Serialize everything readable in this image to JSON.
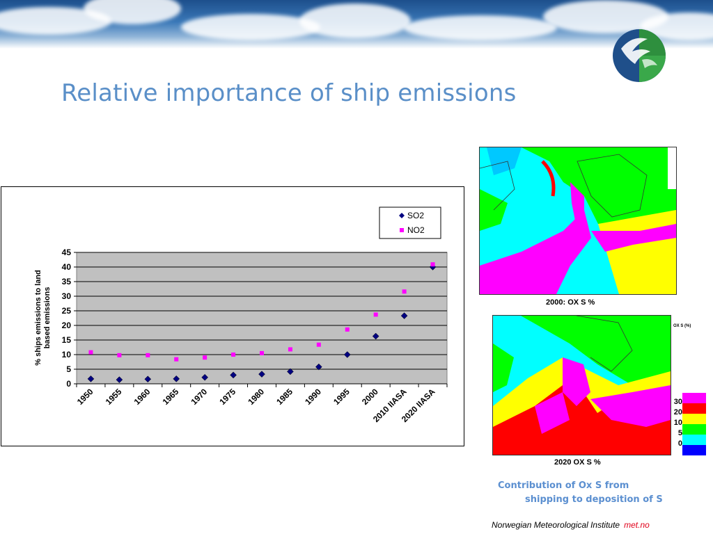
{
  "slide": {
    "title": "Relative importance of ship emissions",
    "footer_institute": "Norwegian Meteorological Institute",
    "footer_brand": "met.no"
  },
  "maps": {
    "map_2000_caption": "2000: OX S  %",
    "map_2020_caption": "2020 OX S  %",
    "scale_title": "OX S (%)",
    "scale_labels": [
      "30",
      "20",
      "10",
      "5",
      "0"
    ],
    "scale_colors": [
      "#ff00ff",
      "#ff0000",
      "#ffff00",
      "#00ff00",
      "#00ffff",
      "#0000ff"
    ]
  },
  "caption": {
    "line1": "Contribution of Ox S from",
    "line2": "shipping to deposition of S"
  },
  "chart_data": {
    "type": "scatter",
    "title": "",
    "ylabel": "% ships emissions to land based emissions",
    "xlabel": "",
    "categories": [
      "1950",
      "1955",
      "1960",
      "1965",
      "1970",
      "1975",
      "1980",
      "1985",
      "1990",
      "1995",
      "2000",
      "2010 IIASA",
      "2020 IIASA"
    ],
    "ylim": [
      0,
      45
    ],
    "yticks": [
      0,
      5,
      10,
      15,
      20,
      25,
      30,
      35,
      40,
      45
    ],
    "grid": true,
    "legend_position": "top-right",
    "series": [
      {
        "name": "SO2",
        "marker": "diamond",
        "color": "#000080",
        "points": [
          {
            "x": "1950",
            "y": 1.7
          },
          {
            "x": "1955",
            "y": 1.4
          },
          {
            "x": "1960",
            "y": 1.6
          },
          {
            "x": "1965",
            "y": 1.7
          },
          {
            "x": "1970",
            "y": 2.2
          },
          {
            "x": "1975",
            "y": 3.0
          },
          {
            "x": "1980",
            "y": 3.3
          },
          {
            "x": "1985",
            "y": 4.2
          },
          {
            "x": "1990",
            "y": 5.8
          },
          {
            "x": "1995",
            "y": 10.0
          },
          {
            "x": "2000",
            "y": 16.3
          },
          {
            "x": "2010 IIASA",
            "y": 23.3
          },
          {
            "x": "2020 IIASA",
            "y": 40.0
          }
        ]
      },
      {
        "name": "NO2",
        "marker": "square",
        "color": "#ff00ff",
        "points": [
          {
            "x": "1950",
            "y": 10.8
          },
          {
            "x": "1955",
            "y": 9.8
          },
          {
            "x": "1960",
            "y": 9.8
          },
          {
            "x": "1965",
            "y": 8.4
          },
          {
            "x": "1970",
            "y": 9.0
          },
          {
            "x": "1975",
            "y": 10.0
          },
          {
            "x": "1980",
            "y": 10.5
          },
          {
            "x": "1985",
            "y": 11.8
          },
          {
            "x": "1990",
            "y": 13.4
          },
          {
            "x": "1995",
            "y": 18.6
          },
          {
            "x": "2000",
            "y": 23.7
          },
          {
            "x": "2010 IIASA",
            "y": 31.6
          },
          {
            "x": "2020 IIASA",
            "y": 40.9
          }
        ]
      }
    ]
  }
}
